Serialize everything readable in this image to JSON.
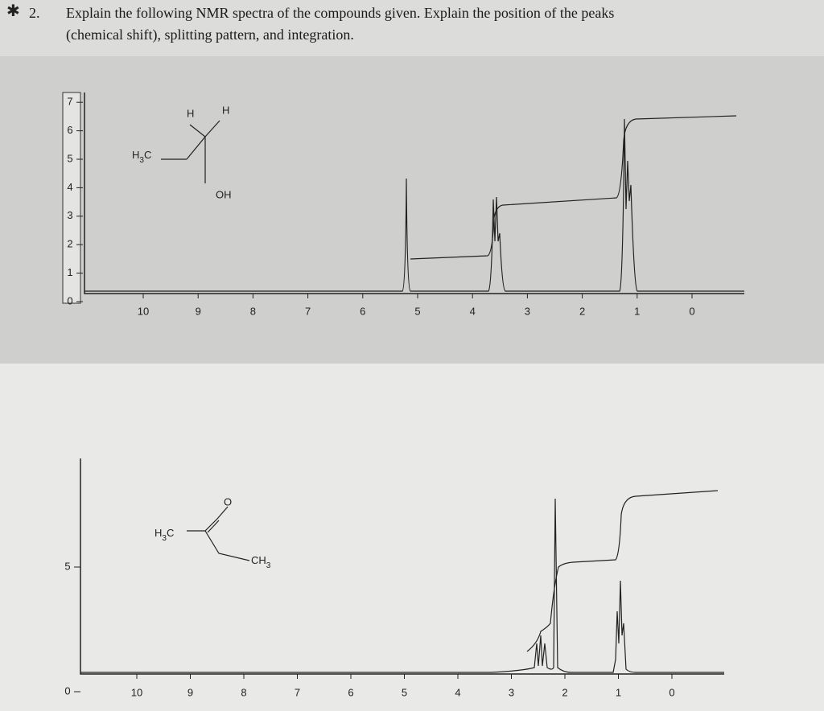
{
  "question": {
    "number": "2.",
    "lines": [
      "Explain the following NMR spectra of the compounds given. Explain the position of the peaks",
      "(chemical shift), splitting pattern, and integration."
    ]
  },
  "spectra": [
    {
      "molecule": {
        "h_left": "H",
        "h_right": "H",
        "methyl": [
          "H",
          "3",
          "C"
        ],
        "hydroxyl": "OH"
      },
      "x_ticks": [
        10,
        9,
        8,
        7,
        6,
        5,
        4,
        3,
        2,
        1,
        0
      ],
      "y_ticks": [
        0,
        1,
        2,
        3,
        4,
        5,
        6,
        7
      ]
    },
    {
      "molecule": {
        "oxygen": "O",
        "methyl_left": [
          "H",
          "3",
          "C"
        ],
        "methyl_right": [
          "CH",
          "3"
        ]
      },
      "x_ticks": [
        10,
        9,
        8,
        7,
        6,
        5,
        4,
        3,
        2,
        1,
        0
      ],
      "y_ticks": [
        5,
        0
      ]
    }
  ]
}
